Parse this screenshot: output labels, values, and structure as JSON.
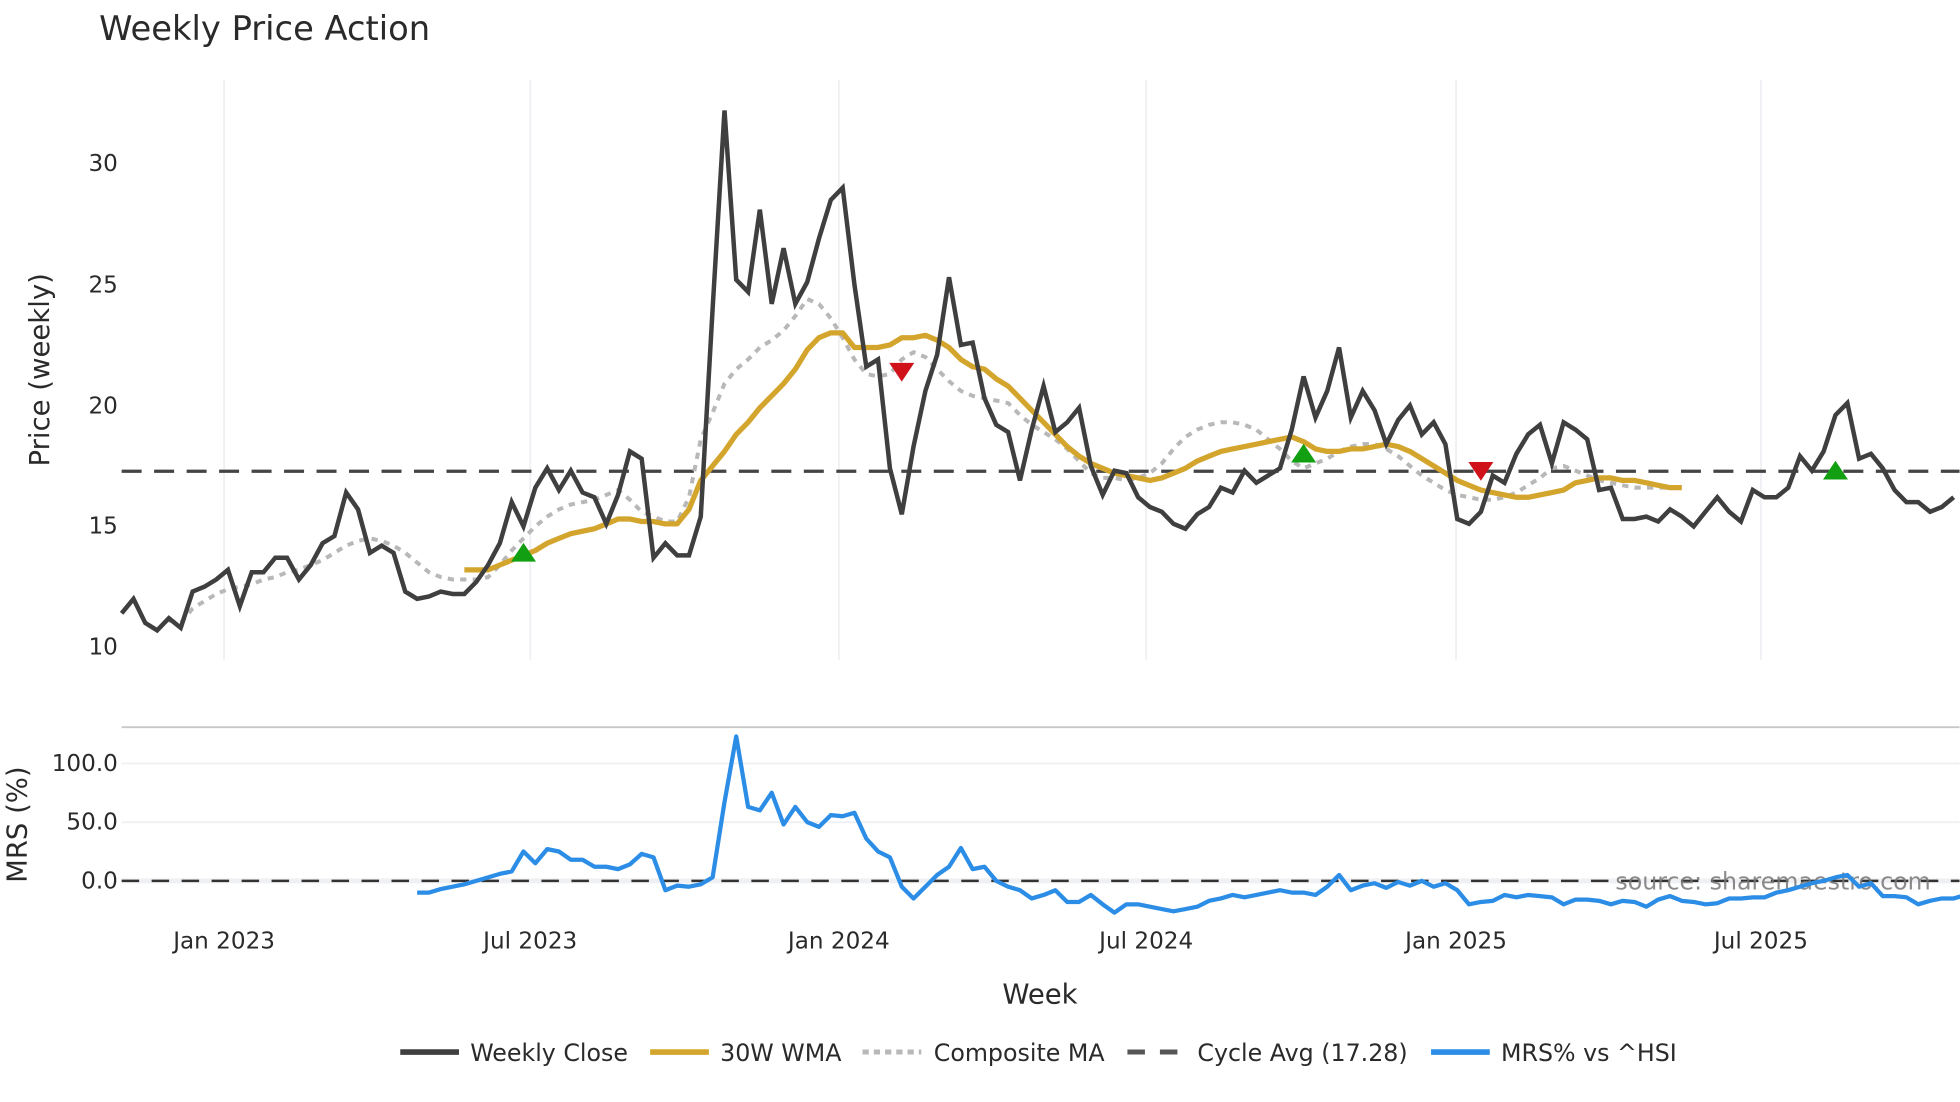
{
  "title": "Weekly Price Action",
  "colors": {
    "weekly_close": "#3f3f3f",
    "wma": "#d4a52c",
    "composite": "#b8b8b8",
    "cycle_avg": "#444444",
    "mrs": "#2b8de6",
    "buy_signal": "#12a012",
    "sell_signal": "#d0121a",
    "grid": "#eef0f3",
    "divider": "#c8c8c8"
  },
  "legend": {
    "weekly_close": "Weekly Close",
    "wma": "30W WMA",
    "composite": "Composite MA",
    "cycle_avg": "Cycle Avg (17.28)",
    "mrs": "MRS% vs ^HSI"
  },
  "source_label": "source: sharemaestro.com",
  "chart_data": [
    {
      "type": "line",
      "title": "Weekly Price Action",
      "xlabel": "Week",
      "ylabel": "Price (weekly)",
      "ylim": [
        10,
        33
      ],
      "yticks": [
        "10",
        "15",
        "20",
        "25",
        "30"
      ],
      "xticks": [
        "Jan 2023",
        "Jul 2023",
        "Jan 2024",
        "Jul 2024",
        "Jan 2025",
        "Jul 2025"
      ],
      "x_start_week": "2022-11 (approx)",
      "cycle_avg": 17.28,
      "series": [
        {
          "name": "Weekly Close",
          "start_index": 0,
          "values": [
            11.4,
            12.0,
            11.0,
            10.7,
            11.2,
            10.8,
            12.3,
            12.5,
            12.8,
            13.2,
            11.7,
            13.1,
            13.1,
            13.7,
            13.7,
            12.8,
            13.4,
            14.3,
            14.6,
            16.4,
            15.7,
            13.9,
            14.2,
            13.9,
            12.3,
            12.0,
            12.1,
            12.3,
            12.2,
            12.2,
            12.7,
            13.4,
            14.3,
            16.0,
            15.0,
            16.6,
            17.4,
            16.5,
            17.3,
            16.4,
            16.2,
            15.1,
            16.3,
            18.1,
            17.8,
            13.7,
            14.3,
            13.8,
            13.8,
            15.4,
            24.0,
            32.2,
            25.2,
            24.7,
            28.1,
            24.2,
            26.5,
            24.2,
            25.1,
            26.9,
            28.5,
            29.0,
            25.0,
            21.6,
            21.9,
            17.4,
            15.5,
            18.3,
            20.6,
            22.1,
            25.3,
            22.5,
            22.6,
            20.3,
            19.2,
            18.9,
            16.9,
            19.0,
            20.8,
            18.9,
            19.3,
            19.9,
            17.5,
            16.3,
            17.3,
            17.2,
            16.2,
            15.8,
            15.6,
            15.1,
            14.9,
            15.5,
            15.8,
            16.6,
            16.4,
            17.3,
            16.8,
            17.1,
            17.4,
            19.0,
            21.2,
            19.5,
            20.6,
            22.4,
            19.5,
            20.6,
            19.8,
            18.4,
            19.4,
            20.0,
            18.8,
            19.3,
            18.4,
            15.3,
            15.1,
            15.6,
            17.1,
            16.8,
            18.0,
            18.8,
            19.2,
            17.6,
            19.3,
            19.0,
            18.6,
            16.5,
            16.6,
            15.3,
            15.3,
            15.4,
            15.2,
            15.7,
            15.4,
            15.0,
            15.6,
            16.2,
            15.6,
            15.2,
            16.5,
            16.2,
            16.2,
            16.6,
            17.9,
            17.3,
            18.1,
            19.6,
            20.1,
            17.8,
            18.0,
            17.4,
            16.5,
            16.0,
            16.0,
            15.6,
            15.8,
            16.2
          ]
        },
        {
          "name": "30W WMA",
          "start_index": 29,
          "values": [
            13.2,
            13.2,
            13.2,
            13.4,
            13.6,
            13.8,
            14.0,
            14.3,
            14.5,
            14.7,
            14.8,
            14.9,
            15.1,
            15.3,
            15.3,
            15.2,
            15.2,
            15.1,
            15.1,
            15.7,
            16.9,
            17.5,
            18.1,
            18.8,
            19.3,
            19.9,
            20.4,
            20.9,
            21.5,
            22.3,
            22.8,
            23.0,
            23.0,
            22.4,
            22.4,
            22.4,
            22.5,
            22.8,
            22.8,
            22.9,
            22.7,
            22.4,
            21.9,
            21.6,
            21.5,
            21.1,
            20.8,
            20.3,
            19.8,
            19.3,
            18.8,
            18.3,
            17.9,
            17.6,
            17.4,
            17.2,
            17.1,
            17.0,
            16.9,
            17.0,
            17.2,
            17.4,
            17.7,
            17.9,
            18.1,
            18.2,
            18.3,
            18.4,
            18.5,
            18.6,
            18.7,
            18.5,
            18.2,
            18.1,
            18.1,
            18.2,
            18.2,
            18.3,
            18.4,
            18.3,
            18.1,
            17.8,
            17.5,
            17.2,
            16.9,
            16.7,
            16.5,
            16.4,
            16.3,
            16.2,
            16.2,
            16.3,
            16.4,
            16.5,
            16.8,
            16.9,
            17.0,
            17.0,
            16.9,
            16.9,
            16.8,
            16.7,
            16.6,
            16.6
          ]
        },
        {
          "name": "Composite MA",
          "start_index": 4,
          "values": [
            11.1,
            11.0,
            11.6,
            11.9,
            12.2,
            12.4,
            12.5,
            12.6,
            12.8,
            12.9,
            13.1,
            13.2,
            13.4,
            13.6,
            13.9,
            14.2,
            14.4,
            14.5,
            14.4,
            14.2,
            13.9,
            13.5,
            13.1,
            12.9,
            12.8,
            12.8,
            12.8,
            12.9,
            13.4,
            14.0,
            14.5,
            15.0,
            15.4,
            15.7,
            15.9,
            16.0,
            16.1,
            16.3,
            16.5,
            16.1,
            15.6,
            15.4,
            15.2,
            15.2,
            16.2,
            18.6,
            19.7,
            20.9,
            21.5,
            21.9,
            22.4,
            22.7,
            23.1,
            23.7,
            24.4,
            24.2,
            23.6,
            22.8,
            21.9,
            21.3,
            21.2,
            21.3,
            21.9,
            22.2,
            22.0,
            21.5,
            21.0,
            20.6,
            20.4,
            20.3,
            20.2,
            20.1,
            19.6,
            19.2,
            18.9,
            18.6,
            18.2,
            17.7,
            17.2,
            17.0,
            17.0,
            16.9,
            17.0,
            17.2,
            17.6,
            18.2,
            18.7,
            19.0,
            19.2,
            19.3,
            19.3,
            19.2,
            19.0,
            18.6,
            18.2,
            17.7,
            17.4,
            17.6,
            17.8,
            18.1,
            18.3,
            18.4,
            18.4,
            18.2,
            17.9,
            17.5,
            17.1,
            16.8,
            16.5,
            16.3,
            16.2,
            16.1,
            16.1,
            16.2,
            16.4,
            16.7,
            17.0,
            17.4,
            17.5,
            17.3,
            17.1,
            16.9,
            16.8,
            16.7,
            16.6,
            16.6,
            16.6,
            16.6
          ]
        }
      ],
      "signals": [
        {
          "type": "buy",
          "index": 34,
          "value": 13.9
        },
        {
          "type": "sell",
          "index": 66,
          "value": 21.4
        },
        {
          "type": "buy",
          "index": 100,
          "value": 18.0
        },
        {
          "type": "sell",
          "index": 115,
          "value": 17.3
        },
        {
          "type": "buy",
          "index": 145,
          "value": 17.3
        }
      ]
    },
    {
      "type": "line",
      "title": "",
      "xlabel": "Week",
      "ylabel": "MRS (%)",
      "ylim": [
        -30,
        125
      ],
      "yticks": [
        "0.0",
        "50.0",
        "100.0"
      ],
      "reference_line": 0,
      "series": [
        {
          "name": "MRS% vs ^HSI",
          "start_index": 25,
          "values": [
            -10,
            -10,
            -7,
            -5,
            -3,
            0,
            3,
            6,
            8,
            25,
            15,
            27,
            25,
            18,
            18,
            12,
            12,
            10,
            14,
            23,
            20,
            -8,
            -4,
            -5,
            -3,
            3,
            67,
            123,
            63,
            60,
            75,
            48,
            63,
            50,
            46,
            56,
            55,
            58,
            36,
            25,
            20,
            -5,
            -15,
            -5,
            5,
            12,
            28,
            10,
            12,
            0,
            -5,
            -8,
            -15,
            -12,
            -8,
            -18,
            -18,
            -12,
            -20,
            -27,
            -20,
            -20,
            -22,
            -24,
            -26,
            -24,
            -22,
            -17,
            -15,
            -12,
            -14,
            -12,
            -10,
            -8,
            -10,
            -10,
            -12,
            -5,
            5,
            -8,
            -4,
            -2,
            -6,
            -1,
            -4,
            0,
            -5,
            -2,
            -8,
            -20,
            -18,
            -17,
            -12,
            -14,
            -12,
            -13,
            -14,
            -20,
            -16,
            -16,
            -17,
            -20,
            -17,
            -18,
            -22,
            -16,
            -13,
            -17,
            -18,
            -20,
            -19,
            -15,
            -15,
            -14,
            -14,
            -10,
            -8,
            -5,
            -2,
            0,
            3,
            5,
            -5,
            -2,
            -13,
            -13,
            -14,
            -20,
            -17,
            -15,
            -15,
            -12
          ]
        }
      ]
    }
  ]
}
